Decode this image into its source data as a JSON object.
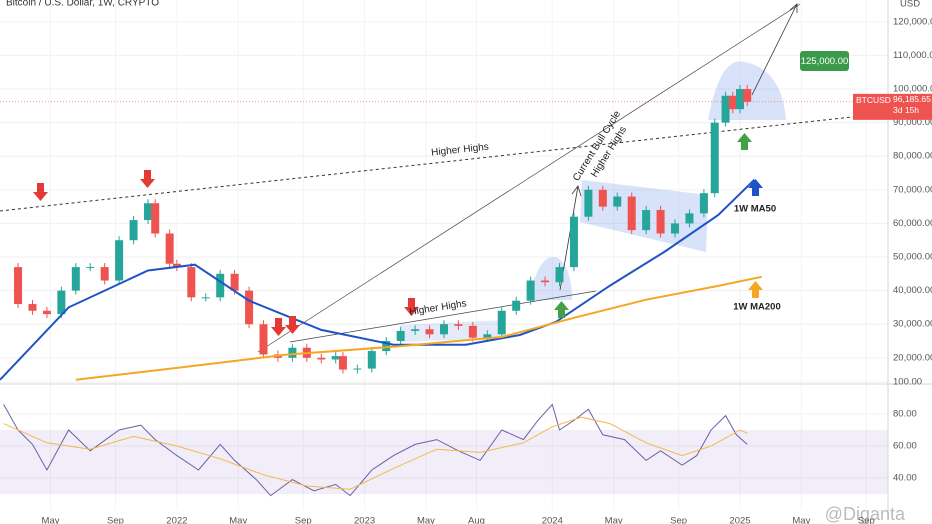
{
  "title": "Bitcoin / U.S. Dollar, 1W, CRYPTO",
  "currency": "USD",
  "watermark": "@Diganta",
  "ticker": {
    "symbol": "BTCUSD",
    "price": {
      "value": 96185.65,
      "label": "96,185.65"
    },
    "countdown": "3d 15h"
  },
  "annotations": {
    "higher_highs_1": "Higher Highs",
    "higher_highs_2": "Higher Highs",
    "bull_cycle": "Current Bull Cycle",
    "bull_cycle_2": "Higher Highs",
    "target": "125,000.00"
  },
  "chart_data": [
    {
      "type": "candlestick",
      "xlim": [
        -49,
        197
      ],
      "xticks": [
        {
          "value": -35,
          "label": "May"
        },
        {
          "value": -17,
          "label": "Sep"
        },
        {
          "value": 0,
          "label": "2022"
        },
        {
          "value": 17,
          "label": "May"
        },
        {
          "value": 35,
          "label": "Sep"
        },
        {
          "value": 52,
          "label": "2023"
        },
        {
          "value": 69,
          "label": "May"
        },
        {
          "value": 83,
          "label": "Aug"
        },
        {
          "value": 104,
          "label": "2024"
        },
        {
          "value": 121,
          "label": "May"
        },
        {
          "value": 139,
          "label": "Sep"
        },
        {
          "value": 156,
          "label": "2025"
        },
        {
          "value": 173,
          "label": "May"
        },
        {
          "value": 191,
          "label": "Sep"
        }
      ],
      "ylim": [
        12500,
        126500
      ],
      "yticks": [
        {
          "value": 20000,
          "label": "20,000.00"
        },
        {
          "value": 30000,
          "label": "30,000.00"
        },
        {
          "value": 40000,
          "label": "40,000.00"
        },
        {
          "value": 50000,
          "label": "50,000.00"
        },
        {
          "value": 60000,
          "label": "60,000.00"
        },
        {
          "value": 70000,
          "label": "70,000.00"
        },
        {
          "value": 80000,
          "label": "80,000.00"
        },
        {
          "value": 90000,
          "label": "90,000.00"
        },
        {
          "value": 100000,
          "label": "100,000.00"
        },
        {
          "value": 110000,
          "label": "110,000.00"
        },
        {
          "value": 120000,
          "label": "120,000.00"
        }
      ],
      "grid": true,
      "up_color": "#26a69a",
      "down_color": "#ef5350",
      "series": [
        {
          "name": "BTCUSD",
          "x": [
            -48,
            -44,
            -40,
            -36,
            -32,
            -28,
            -24,
            -20,
            -16,
            -12,
            -8,
            -6,
            -2,
            0,
            4,
            8,
            12,
            16,
            20,
            24,
            28,
            32,
            36,
            40,
            44,
            46,
            50,
            54,
            58,
            62,
            66,
            70,
            74,
            78,
            82,
            86,
            90,
            94,
            98,
            102,
            106,
            110,
            114,
            118,
            122,
            126,
            130,
            134,
            138,
            142,
            146,
            149,
            152,
            154,
            156,
            158
          ],
          "values": [
            47000,
            36000,
            34000,
            33000,
            40000,
            47000,
            47000,
            43000,
            55000,
            61000,
            66000,
            57000,
            48000,
            47000,
            38000,
            38000,
            45000,
            40000,
            30000,
            21000,
            20000,
            23000,
            20000,
            19500,
            20500,
            16500,
            16800,
            22000,
            25000,
            28000,
            28500,
            27000,
            30000,
            29500,
            26000,
            27000,
            34000,
            37000,
            43000,
            42500,
            47000,
            62000,
            70000,
            65000,
            68000,
            58000,
            64000,
            57000,
            60000,
            63000,
            69000,
            90000,
            98000,
            94000,
            100000,
            96186
          ]
        },
        {
          "name": "1W MA50",
          "color": "#1e53c8",
          "x": [
            -49,
            -30,
            -8,
            5,
            20,
            40,
            60,
            80,
            95,
            105,
            120,
            135,
            150,
            160
          ],
          "values": [
            13450,
            35000,
            46000,
            47700,
            37000,
            28300,
            23900,
            23900,
            26800,
            30700,
            41500,
            51500,
            62500,
            73000
          ]
        },
        {
          "name": "1W MA200",
          "color": "#f5a623",
          "x": [
            -28,
            0,
            30,
            60,
            90,
            110,
            130,
            150,
            162
          ],
          "values": [
            13450,
            17000,
            20900,
            23300,
            26200,
            31900,
            37300,
            41400,
            44100
          ]
        }
      ]
    },
    {
      "type": "line",
      "xlim": [
        -49,
        197
      ],
      "ylim": [
        20,
        100
      ],
      "yticks": [
        {
          "value": 40,
          "label": "40.00"
        },
        {
          "value": 60,
          "label": "60.00"
        },
        {
          "value": 80,
          "label": "80.00"
        },
        {
          "value": 100,
          "label": "100.00"
        }
      ],
      "series": [
        {
          "name": "RSI",
          "color": "#6b5fa8",
          "x": [
            -48,
            -44,
            -40,
            -36,
            -30,
            -24,
            -16,
            -10,
            -6,
            0,
            6,
            12,
            16,
            22,
            26,
            32,
            38,
            44,
            48,
            54,
            60,
            66,
            72,
            78,
            84,
            90,
            96,
            100,
            104,
            106,
            110,
            114,
            118,
            124,
            130,
            134,
            140,
            144,
            148,
            152,
            155,
            158
          ],
          "values": [
            86,
            70,
            61,
            45,
            70,
            57,
            70,
            73,
            64,
            54,
            45,
            61,
            51,
            39,
            29,
            39,
            32,
            36,
            29,
            45,
            54,
            61,
            64,
            57,
            51,
            70,
            64,
            76,
            86,
            70,
            76,
            83,
            67,
            64,
            51,
            57,
            48,
            54,
            70,
            79,
            67,
            61
          ]
        },
        {
          "name": "RSI MA",
          "color": "#f2b84b",
          "x": [
            -48,
            -36,
            -24,
            -12,
            0,
            12,
            24,
            36,
            48,
            60,
            72,
            84,
            96,
            104,
            112,
            120,
            130,
            140,
            148,
            156,
            158
          ],
          "values": [
            74,
            62,
            58,
            66,
            60,
            52,
            42,
            35,
            33,
            46,
            58,
            56,
            62,
            72,
            78,
            74,
            62,
            54,
            60,
            70,
            68
          ]
        }
      ]
    }
  ]
}
